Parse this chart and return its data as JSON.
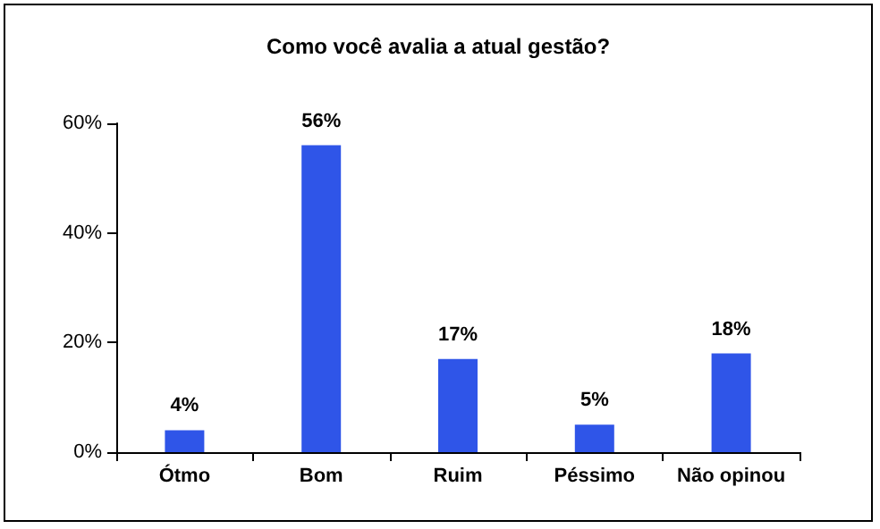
{
  "chart_data": {
    "type": "bar",
    "title": "Como você avalia a atual gestão?",
    "categories": [
      "Ótmo",
      "Bom",
      "Ruim",
      "Péssimo",
      "Não opinou"
    ],
    "values": [
      4,
      56,
      17,
      5,
      18
    ],
    "color": "#2f55e8",
    "value_labels": [
      "4%",
      "56%",
      "17%",
      "5%",
      "18%"
    ],
    "ylim": [
      0,
      60
    ],
    "yticks": [
      {
        "value": 0,
        "label": "0%"
      },
      {
        "value": 20,
        "label": "20%"
      },
      {
        "value": 40,
        "label": "40%"
      },
      {
        "value": 60,
        "label": "60%"
      }
    ],
    "grid": false
  }
}
